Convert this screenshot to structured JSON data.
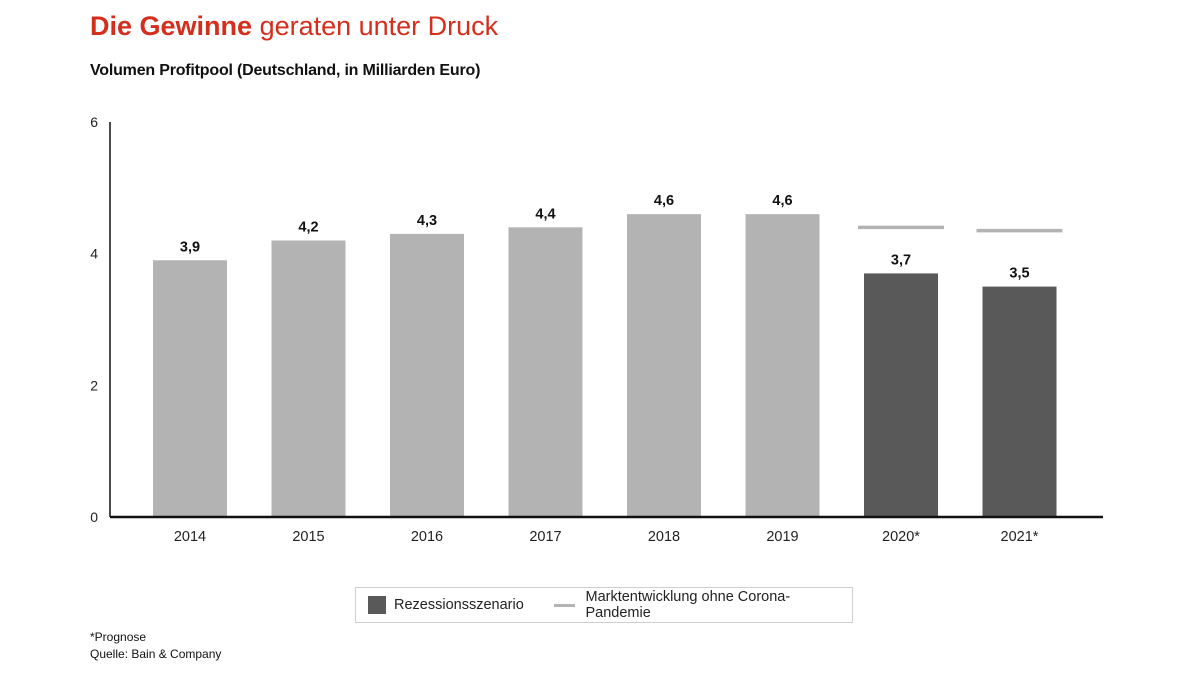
{
  "header": {
    "title_bold": "Die Gewinne",
    "title_rest": "geraten unter Druck",
    "subtitle": "Volumen Profitpool (Deutschland, in Milliarden Euro)"
  },
  "colors": {
    "accent": "#d42e1c",
    "bar_actual": "#b3b3b3",
    "bar_recession": "#595959",
    "market_line": "#b3b3b3",
    "axis": "#111111"
  },
  "chart_data": {
    "type": "bar",
    "categories": [
      "2014",
      "2015",
      "2016",
      "2017",
      "2018",
      "2019",
      "2020*",
      "2021*"
    ],
    "values": [
      3.9,
      4.2,
      4.3,
      4.4,
      4.6,
      4.6,
      3.7,
      3.5
    ],
    "value_labels": [
      "3,9",
      "4,2",
      "4,3",
      "4,4",
      "4,6",
      "4,6",
      "3,7",
      "3,5"
    ],
    "bar_kind": [
      "actual",
      "actual",
      "actual",
      "actual",
      "actual",
      "actual",
      "recession",
      "recession"
    ],
    "series": [
      {
        "name": "Rezessionsszenario",
        "values": [
          null,
          null,
          null,
          null,
          null,
          null,
          3.7,
          3.5
        ]
      },
      {
        "name": "Marktentwicklung ohne Corona-Pandemie",
        "values": [
          null,
          null,
          null,
          null,
          null,
          null,
          4.4,
          4.35
        ]
      }
    ],
    "ylim": [
      0,
      6
    ],
    "yticks": [
      0,
      2,
      4,
      6
    ],
    "grid": false,
    "legend_position": "bottom"
  },
  "legend": {
    "recession_label": "Rezessionsszenario",
    "market_label": "Marktentwicklung ohne Corona-Pandemie"
  },
  "footnotes": {
    "forecast": "*Prognose",
    "source": "Quelle: Bain & Company"
  }
}
